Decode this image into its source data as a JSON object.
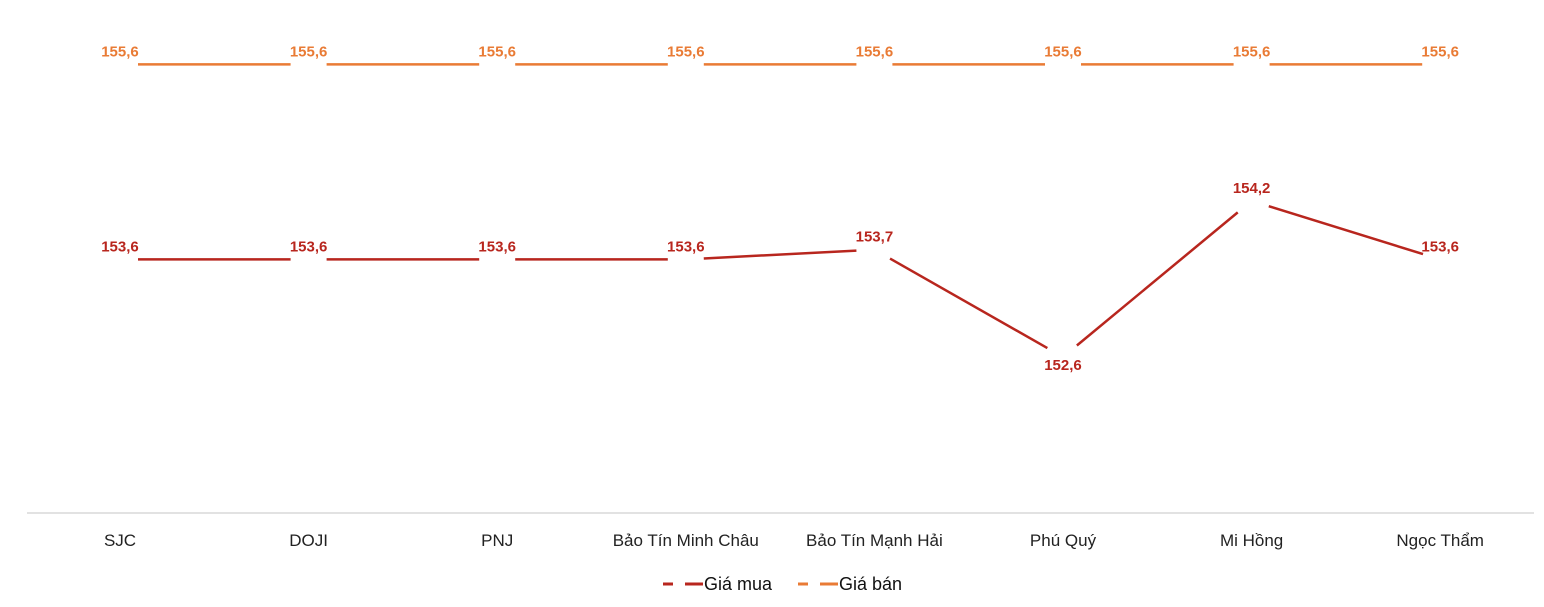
{
  "chart_data": {
    "type": "line",
    "title": "",
    "xlabel": "",
    "ylabel": "",
    "categories": [
      "SJC",
      "DOJI",
      "PNJ",
      "Bảo Tín Minh Châu",
      "Bảo Tín Mạnh Hải",
      "Phú Quý",
      "Mi Hồng",
      "Ngọc Thẩm"
    ],
    "series": [
      {
        "name": "Giá mua",
        "color": "#B8261E",
        "values": [
          153.6,
          153.6,
          153.6,
          153.6,
          153.7,
          152.6,
          154.2,
          153.6
        ],
        "labels": [
          "153,6",
          "153,6",
          "153,6",
          "153,6",
          "153,7",
          "152,6",
          "154,2",
          "153,6"
        ]
      },
      {
        "name": "Giá bán",
        "color": "#E97B35",
        "values": [
          155.6,
          155.6,
          155.6,
          155.6,
          155.6,
          155.6,
          155.6,
          155.6
        ],
        "labels": [
          "155,6",
          "155,6",
          "155,6",
          "155,6",
          "155,6",
          "155,6",
          "155,6",
          "155,6"
        ]
      }
    ],
    "ylim": [
      151.0,
      156.26
    ],
    "grid": false,
    "legend": "bottom"
  }
}
